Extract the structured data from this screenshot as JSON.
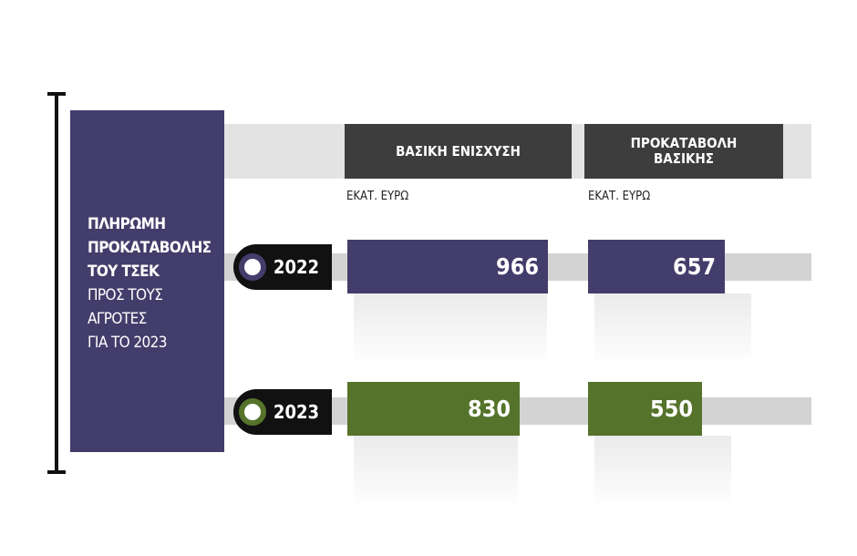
{
  "panel": {
    "title_lines": [
      "ΠΛΗΡΩΜΗ",
      "ΠΡΟΚΑΤΑΒΟΛΗΣ",
      "ΤΟΥ ΤΣΕΚ"
    ],
    "subtitle_lines": [
      "ΠΡΟΣ ΤΟΥΣ",
      "ΑΓΡΟΤΕΣ",
      "ΓΙΑ ΤΟ 2023"
    ]
  },
  "colors": {
    "panel": "#433d6b",
    "header": "#3d3d3d",
    "series_2022": "#433d6b",
    "series_2023": "#55732a",
    "badge": "#111111"
  },
  "chart_data": {
    "type": "bar",
    "categories": [
      "ΒΑΣΙΚΗ ΕΝΙΣΧΥΣΗ",
      "ΠΡΟΚΑΤΑΒΟΛΗ ΒΑΣΙΚΗΣ"
    ],
    "category_display": [
      [
        "ΒΑΣΙΚΗ ΕΝΙΣΧΥΣΗ"
      ],
      [
        "ΠΡΟΚΑΤΑΒΟΛΗ",
        "ΒΑΣΙΚΗΣ"
      ]
    ],
    "units": [
      "ΕΚΑΤ. ΕΥΡΩ",
      "ΕΚΑΤ. ΕΥΡΩ"
    ],
    "orientation": "horizontal",
    "xlim": [
      0,
      1000
    ],
    "series": [
      {
        "name": "2022",
        "values": [
          966,
          657
        ]
      },
      {
        "name": "2023",
        "values": [
          830,
          550
        ]
      }
    ]
  }
}
